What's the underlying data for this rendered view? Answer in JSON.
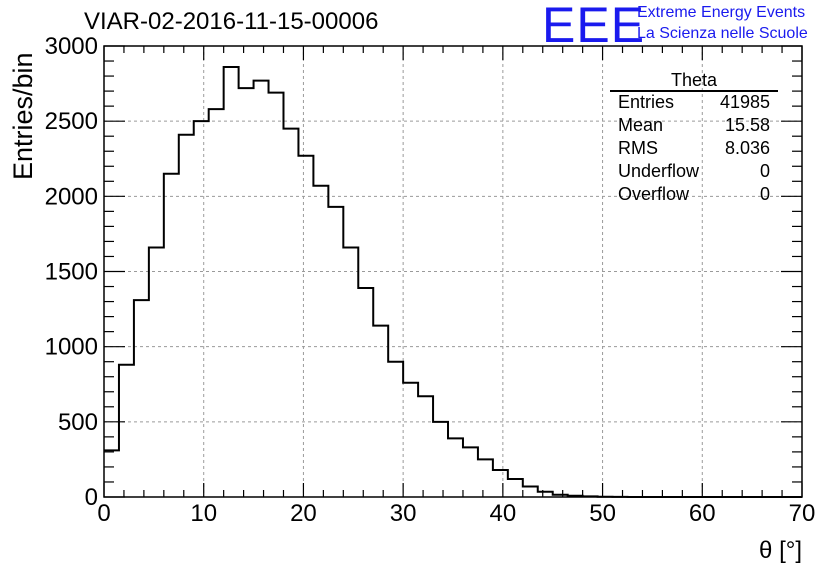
{
  "chart_data": {
    "type": "bar",
    "title": "VIAR-02-2016-11-15-00006",
    "xlabel": "θ [°]",
    "ylabel": "Entries/bin",
    "xlim": [
      0,
      70
    ],
    "ylim": [
      0,
      3000
    ],
    "grid": true,
    "xticks": [
      0,
      10,
      20,
      30,
      40,
      50,
      60,
      70
    ],
    "yticks": [
      0,
      500,
      1000,
      1500,
      2000,
      2500,
      3000
    ],
    "bin_width": 1.5,
    "bin_edges_start": 0,
    "values": [
      310,
      880,
      1310,
      1660,
      2150,
      2410,
      2500,
      2580,
      2860,
      2720,
      2770,
      2690,
      2450,
      2270,
      2070,
      1930,
      1660,
      1390,
      1140,
      900,
      760,
      670,
      500,
      390,
      330,
      250,
      180,
      120,
      70,
      35,
      15,
      8,
      4,
      2,
      1,
      0,
      0,
      0,
      0,
      0,
      0,
      0,
      0,
      0,
      0,
      0,
      0
    ],
    "stats": {
      "title": "Theta",
      "rows": [
        {
          "label": "Entries",
          "value": "41985"
        },
        {
          "label": "Mean",
          "value": "15.58"
        },
        {
          "label": "RMS",
          "value": "8.036"
        },
        {
          "label": "Underflow",
          "value": "0"
        },
        {
          "label": "Overflow",
          "value": "0"
        }
      ]
    }
  },
  "logo": {
    "text": "EEE",
    "line1": "Extreme Energy Events",
    "line2": "La Scienza nelle Scuole",
    "color": "#1a1aee"
  }
}
